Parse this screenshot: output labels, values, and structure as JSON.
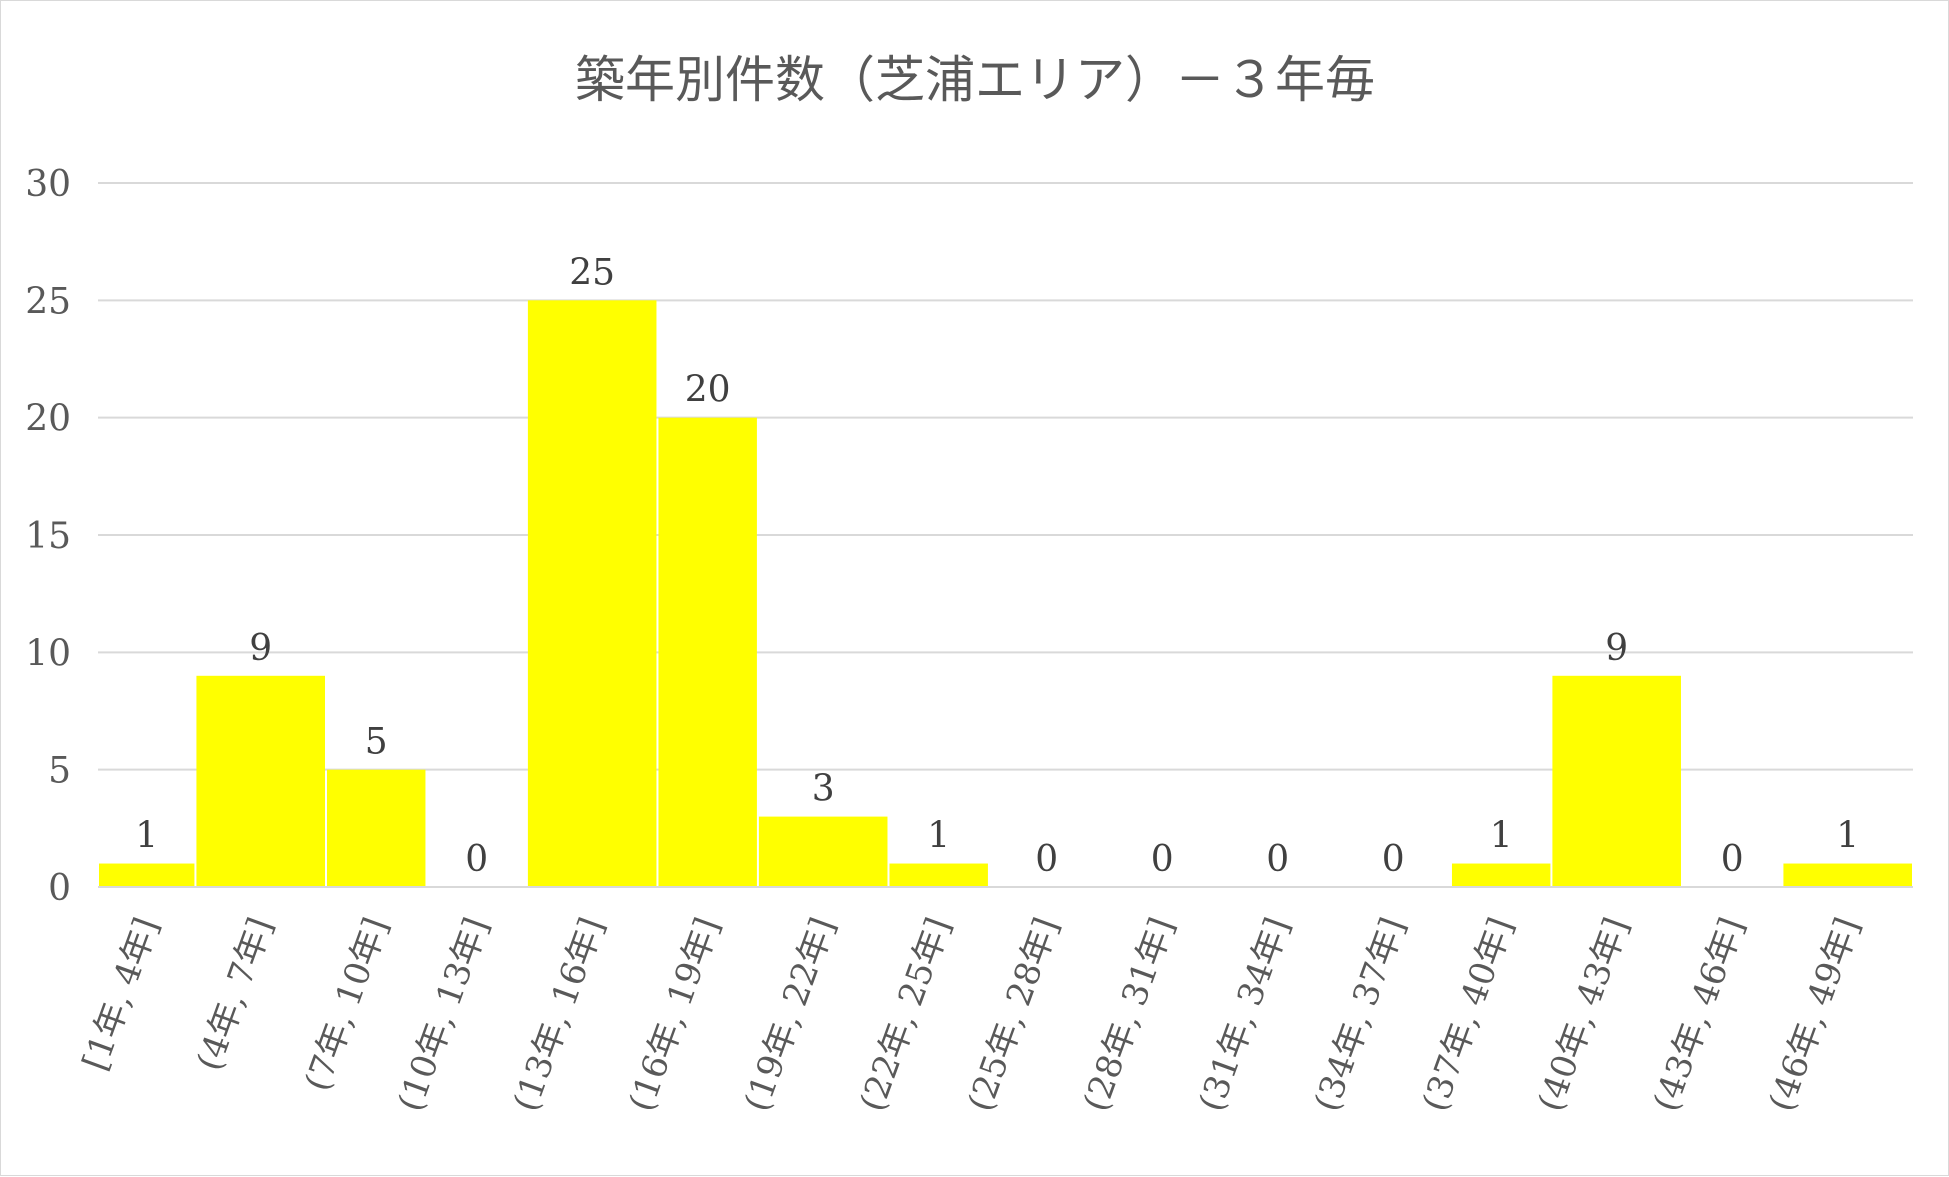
{
  "chart_data": {
    "type": "bar",
    "title": "築年別件数（芝浦エリア）－３年毎",
    "categories": [
      "[1年, 4年]",
      "(4年, 7年]",
      "(7年, 10年]",
      "(10年, 13年]",
      "(13年, 16年]",
      "(16年, 19年]",
      "(19年, 22年]",
      "(22年, 25年]",
      "(25年, 28年]",
      "(28年, 31年]",
      "(31年, 34年]",
      "(34年, 37年]",
      "(37年, 40年]",
      "(40年, 43年]",
      "(43年, 46年]",
      "(46年, 49年]"
    ],
    "values": [
      1,
      9,
      5,
      0,
      25,
      20,
      3,
      1,
      0,
      0,
      0,
      0,
      1,
      9,
      0,
      1
    ],
    "ylim": [
      0,
      30
    ],
    "yticks": [
      0,
      5,
      10,
      15,
      20,
      25,
      30
    ],
    "grid": true,
    "bar_color": "#ffff00"
  }
}
